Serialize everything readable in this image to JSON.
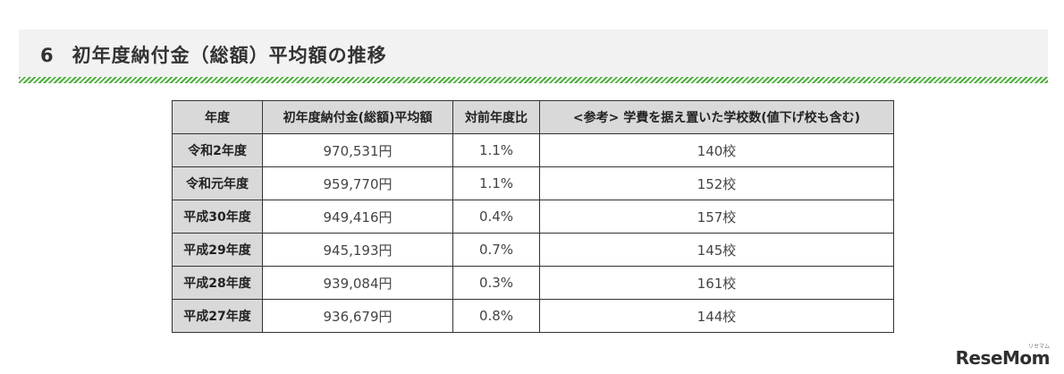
{
  "section": {
    "number": "6",
    "title": "初年度納付金（総額）平均額の推移"
  },
  "table": {
    "headers": [
      "年度",
      "初年度納付金(総額)平均額",
      "対前年度比",
      "<参考> 学費を据え置いた学校数(値下げ校も含む)"
    ],
    "rows": [
      {
        "year": "令和2年度",
        "amount": "970,531円",
        "ratio": "1.1%",
        "schools": "140校"
      },
      {
        "year": "令和元年度",
        "amount": "959,770円",
        "ratio": "1.1%",
        "schools": "152校"
      },
      {
        "year": "平成30年度",
        "amount": "949,416円",
        "ratio": "0.4%",
        "schools": "157校"
      },
      {
        "year": "平成29年度",
        "amount": "945,193円",
        "ratio": "0.7%",
        "schools": "145校"
      },
      {
        "year": "平成28年度",
        "amount": "939,084円",
        "ratio": "0.3%",
        "schools": "161校"
      },
      {
        "year": "平成27年度",
        "amount": "936,679円",
        "ratio": "0.8%",
        "schools": "144校"
      }
    ]
  },
  "logo": {
    "text": "ReseMom",
    "kana": "リセマム"
  },
  "colors": {
    "accent_stripe": "#4caf3c",
    "header_bg": "#f2f2f2",
    "table_header_bg": "#d9d9d9"
  }
}
